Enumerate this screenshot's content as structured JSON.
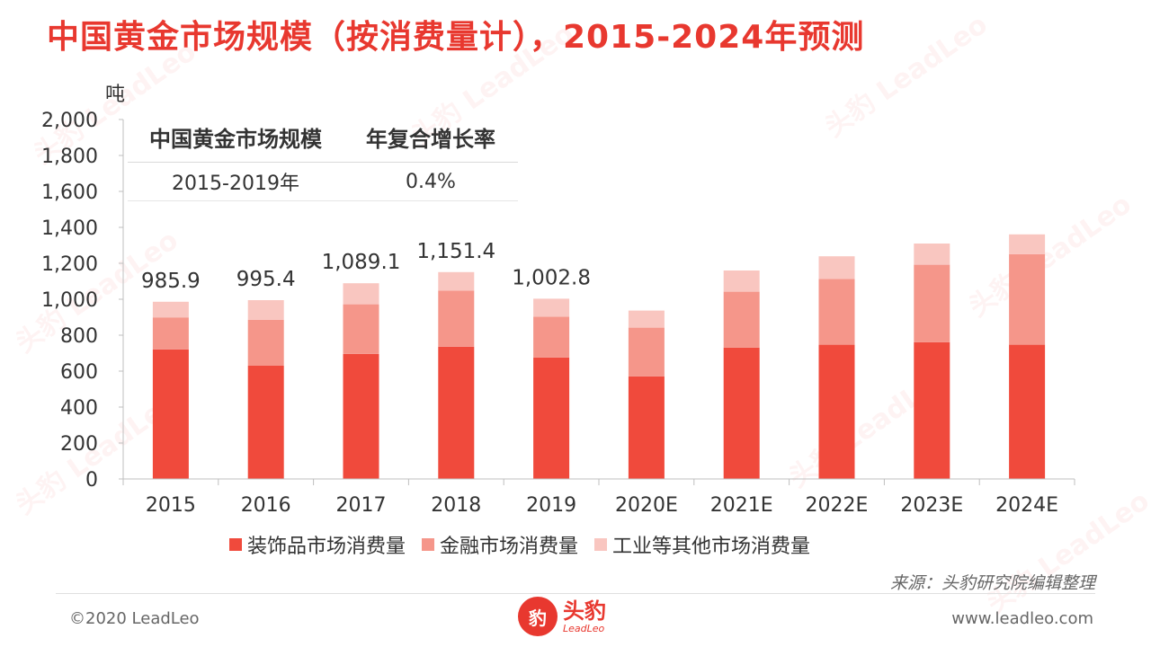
{
  "title": "中国黄金市场规模（按消费量计），2015-2024年预测",
  "watermark_text": "头豹 LeadLeo",
  "unit_label": "吨",
  "cagr_table": {
    "headers": [
      "中国黄金市场规模",
      "年复合增长率"
    ],
    "rows": [
      [
        "2015-2019年",
        "0.4%"
      ]
    ]
  },
  "chart_data": {
    "type": "bar",
    "stacked": true,
    "categories": [
      "2015",
      "2016",
      "2017",
      "2018",
      "2019",
      "2020E",
      "2021E",
      "2022E",
      "2023E",
      "2024E"
    ],
    "series": [
      {
        "name": "装饰品市场消费量",
        "color": "#f04a3c",
        "values": [
          721,
          630,
          696,
          736,
          676,
          571,
          731,
          747,
          761,
          747
        ]
      },
      {
        "name": "金融市场消费量",
        "color": "#f5968a",
        "values": [
          178,
          256,
          276,
          312,
          227,
          271,
          311,
          366,
          431,
          504
        ]
      },
      {
        "name": "工业等其他市场消费量",
        "color": "#f9c6c0",
        "values": [
          87,
          109,
          117,
          103,
          100,
          95,
          118,
          126,
          118,
          110
        ]
      }
    ],
    "total_labels": [
      "985.9",
      "995.4",
      "1,089.1",
      "1,151.4",
      "1,002.8",
      "",
      "",
      "",
      "",
      ""
    ],
    "ylim": [
      0,
      2000
    ],
    "yticks": [
      0,
      200,
      400,
      600,
      800,
      1000,
      1200,
      1400,
      1600,
      1800,
      2000
    ],
    "ytick_labels": [
      "0",
      "200",
      "400",
      "600",
      "800",
      "1,000",
      "1,200",
      "1,400",
      "1,600",
      "1,800",
      "2,000"
    ],
    "ylabel": "吨",
    "grid": false,
    "legend_position": "bottom"
  },
  "source": "来源：头豹研究院编辑整理",
  "footer": {
    "copyright": "©2020 LeadLeo",
    "website": "www.leadleo.com",
    "logo_cn": "头豹",
    "logo_en": "LeadLeo"
  }
}
